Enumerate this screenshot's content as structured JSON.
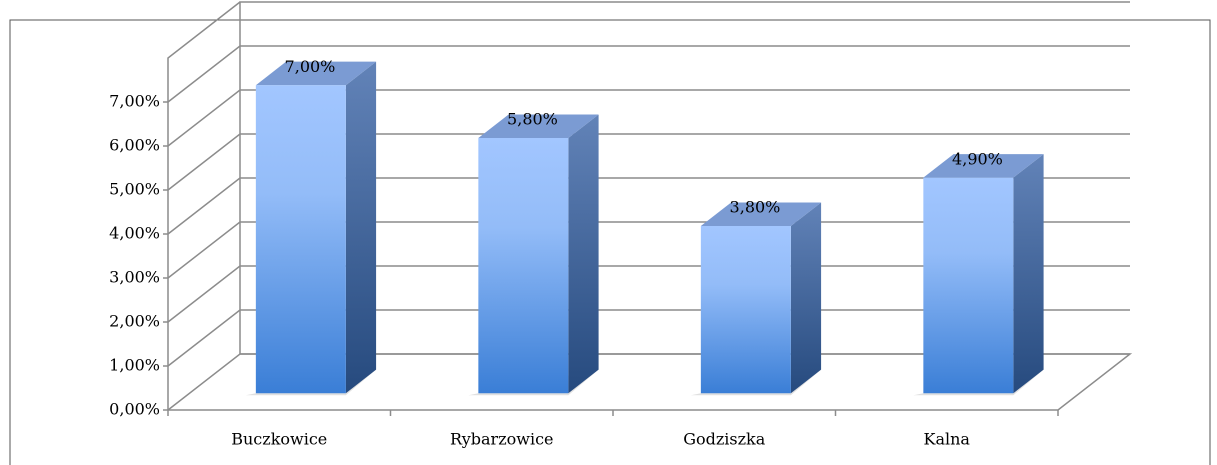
{
  "chart_data": {
    "type": "bar3d",
    "categories": [
      "Buczkowice",
      "Rybarzowice",
      "Godziszka",
      "Kalna"
    ],
    "values": [
      7,
      5.8,
      3.8,
      4.9
    ],
    "value_labels": [
      "7,00%",
      "5,80%",
      "3,80%",
      "4,90%"
    ],
    "color": "#5b93e6",
    "ylim": [
      0,
      8
    ],
    "yticks": [
      {
        "value": 0,
        "label": "0,00%"
      },
      {
        "value": 1,
        "label": "1,00%"
      },
      {
        "value": 2,
        "label": "2,00%"
      },
      {
        "value": 3,
        "label": "3,00%"
      },
      {
        "value": 4,
        "label": "4,00%"
      },
      {
        "value": 5,
        "label": "5,00%"
      },
      {
        "value": 6,
        "label": "6,00%"
      },
      {
        "value": 7,
        "label": "7,00%"
      }
    ],
    "grid": true
  }
}
